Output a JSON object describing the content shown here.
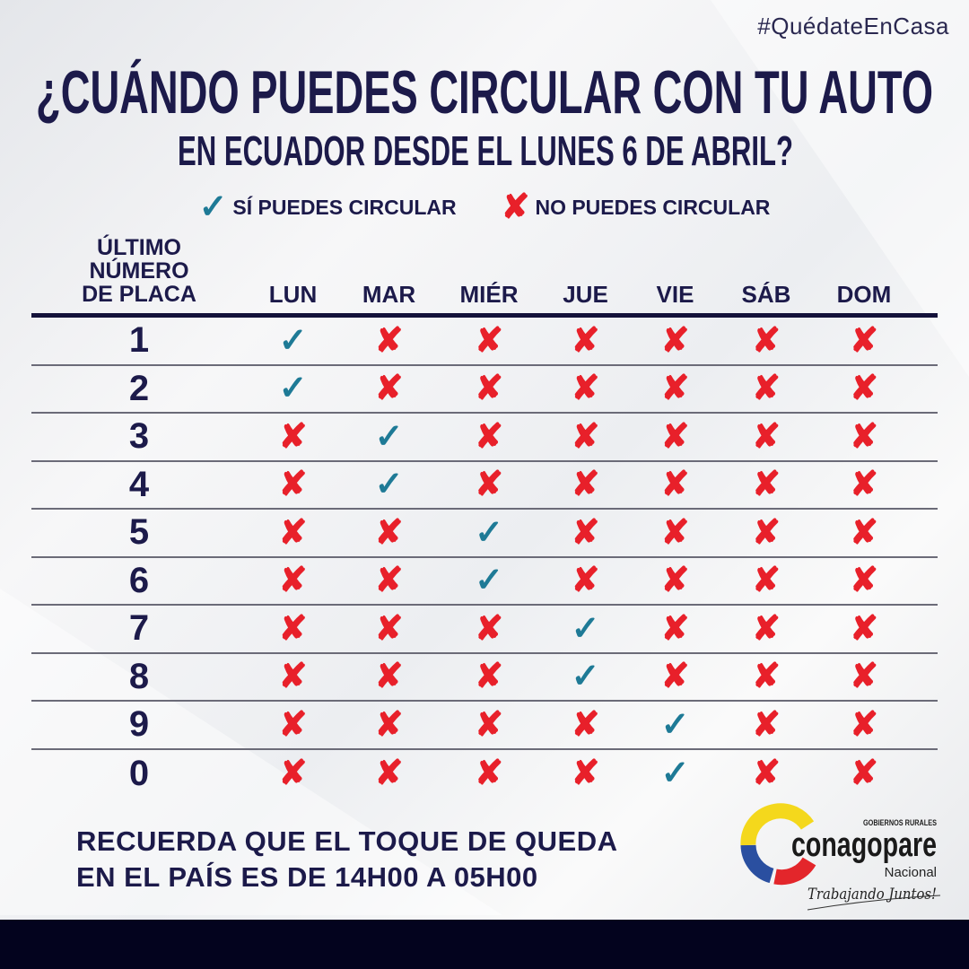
{
  "hashtag": "#QuédateEnCasa",
  "title": {
    "line1": "¿CUÁNDO PUEDES CIRCULAR CON TU AUTO",
    "line2": "EN ECUADOR DESDE EL LUNES 6 DE ABRIL?"
  },
  "legend": {
    "yes_label": "SÍ PUEDES CIRCULAR",
    "no_label": "NO PUEDES CIRCULAR",
    "yes_icon": "check-icon",
    "no_icon": "x-icon"
  },
  "colors": {
    "navy": "#1c1a4a",
    "check": "#1e7a96",
    "cross": "#e8202a",
    "band": "#03031e"
  },
  "table": {
    "plate_header": [
      "ÚLTIMO",
      "NÚMERO",
      "DE PLACA"
    ],
    "days": [
      "LUN",
      "MAR",
      "MIÉR",
      "JUE",
      "VIE",
      "SÁB",
      "DOM"
    ],
    "rows": [
      {
        "plate": "1",
        "allowed": [
          true,
          false,
          false,
          false,
          false,
          false,
          false
        ]
      },
      {
        "plate": "2",
        "allowed": [
          true,
          false,
          false,
          false,
          false,
          false,
          false
        ]
      },
      {
        "plate": "3",
        "allowed": [
          false,
          true,
          false,
          false,
          false,
          false,
          false
        ]
      },
      {
        "plate": "4",
        "allowed": [
          false,
          true,
          false,
          false,
          false,
          false,
          false
        ]
      },
      {
        "plate": "5",
        "allowed": [
          false,
          false,
          true,
          false,
          false,
          false,
          false
        ]
      },
      {
        "plate": "6",
        "allowed": [
          false,
          false,
          true,
          false,
          false,
          false,
          false
        ]
      },
      {
        "plate": "7",
        "allowed": [
          false,
          false,
          false,
          true,
          false,
          false,
          false
        ]
      },
      {
        "plate": "8",
        "allowed": [
          false,
          false,
          false,
          true,
          false,
          false,
          false
        ]
      },
      {
        "plate": "9",
        "allowed": [
          false,
          false,
          false,
          false,
          true,
          false,
          false
        ]
      },
      {
        "plate": "0",
        "allowed": [
          false,
          false,
          false,
          false,
          true,
          false,
          false
        ]
      }
    ]
  },
  "footer": {
    "line1": "RECUERDA QUE EL TOQUE DE QUEDA",
    "line2": "EN EL PAÍS ES DE 14H00 A 05H00"
  },
  "logo": {
    "top": "GOBIERNOS RURALES",
    "name": "conagopare",
    "sub": "Nacional",
    "slogan": "Trabajando Juntos!"
  }
}
